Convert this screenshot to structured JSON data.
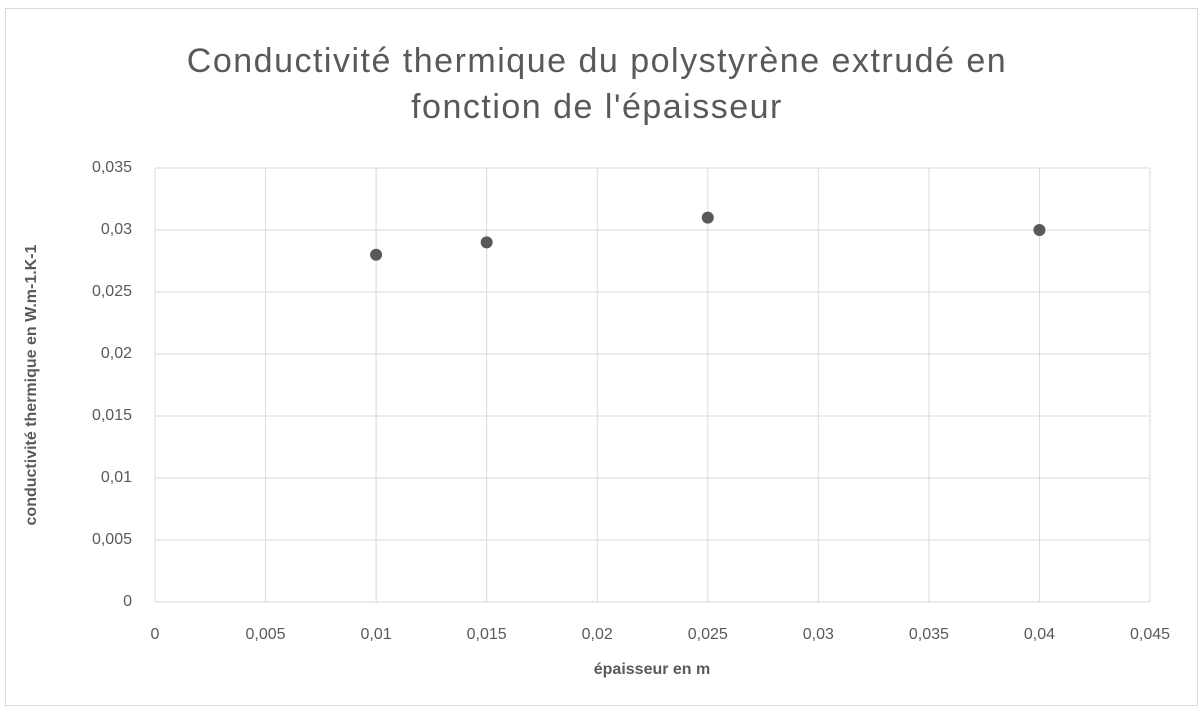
{
  "chart_data": {
    "type": "scatter",
    "title": "Conductivité thermique du polystyrène extrudé en fonction de l'épaisseur",
    "x_label": "épaisseur en m",
    "y_label": "conductivité thermique en W.m-1.K-1",
    "series": [
      {
        "color": "#595959",
        "x": [
          0.01,
          0.015,
          0.025,
          0.04
        ],
        "values": [
          0.028,
          0.029,
          0.031,
          0.03
        ]
      }
    ],
    "xlim": [
      0,
      0.045
    ],
    "xticks": [
      0,
      {
        "value": 0.005,
        "label": "0,005"
      },
      {
        "value": 0.01,
        "label": "0,01"
      },
      {
        "value": 0.015,
        "label": "0,015"
      },
      {
        "value": 0.02,
        "label": "0,02"
      },
      {
        "value": 0.025,
        "label": "0,025"
      },
      {
        "value": 0.03,
        "label": "0,03"
      },
      {
        "value": 0.035,
        "label": "0,035"
      },
      {
        "value": 0.04,
        "label": "0,04"
      },
      {
        "value": 0.045,
        "label": "0,045"
      }
    ],
    "ylim": [
      0,
      0.035
    ],
    "yticks": [
      0,
      {
        "value": 0.005,
        "label": "0,005"
      },
      {
        "value": 0.01,
        "label": "0,01"
      },
      {
        "value": 0.015,
        "label": "0,015"
      },
      {
        "value": 0.02,
        "label": "0,02"
      },
      {
        "value": 0.025,
        "label": "0,025"
      },
      {
        "value": 0.03,
        "label": "0,03"
      },
      {
        "value": 0.035,
        "label": "0,035"
      }
    ],
    "grid": true
  }
}
